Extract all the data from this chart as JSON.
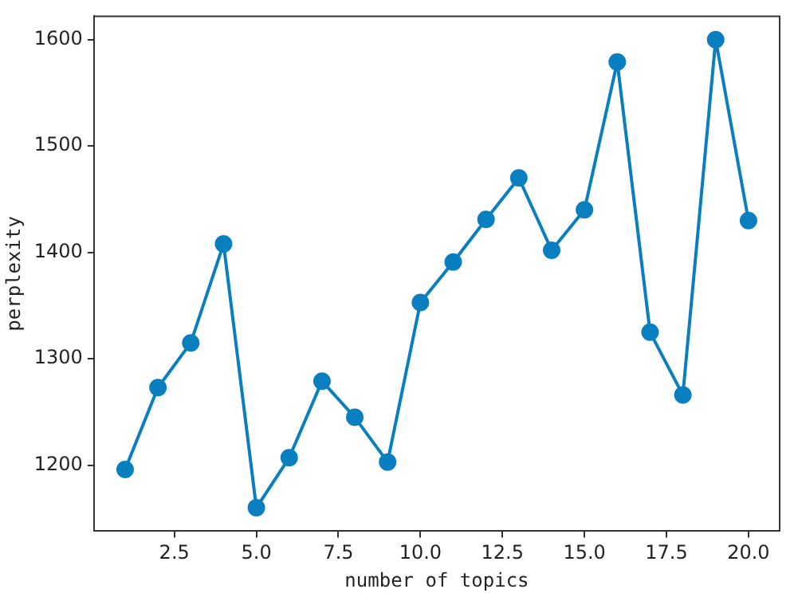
{
  "chart_data": {
    "type": "line",
    "xlabel": "number of topics",
    "ylabel": "perplexity",
    "x": [
      1,
      2,
      3,
      4,
      5,
      6,
      7,
      8,
      9,
      10,
      11,
      12,
      13,
      14,
      15,
      16,
      17,
      18,
      19,
      20
    ],
    "series": [
      {
        "color": "#0a7fc0",
        "values": [
          1196,
          1273,
          1315,
          1408,
          1160,
          1207,
          1279,
          1245,
          1203,
          1353,
          1391,
          1431,
          1470,
          1402,
          1440,
          1579,
          1325,
          1266,
          1600,
          1430
        ]
      }
    ],
    "xlim": [
      0.05,
      20.95
    ],
    "ylim": [
      1138,
      1622
    ],
    "xticks": [
      2.5,
      {
        "value": 5,
        "label": "5.0"
      },
      {
        "value": 7.5,
        "label": "7.5"
      },
      {
        "value": 10,
        "label": "10.0"
      },
      12.5,
      {
        "value": 15,
        "label": "15.0"
      },
      17.5,
      {
        "value": 20,
        "label": "20.0"
      }
    ],
    "yticks": [
      1200,
      1300,
      1400,
      1500,
      1600
    ],
    "grid": false,
    "legend": false,
    "marker": "circle",
    "line_style": "solid"
  }
}
